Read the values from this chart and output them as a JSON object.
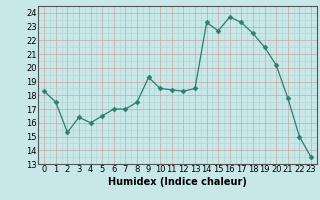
{
  "x": [
    0,
    1,
    2,
    3,
    4,
    5,
    6,
    7,
    8,
    9,
    10,
    11,
    12,
    13,
    14,
    15,
    16,
    17,
    18,
    19,
    20,
    21,
    22,
    23
  ],
  "y": [
    18.3,
    17.5,
    15.3,
    16.4,
    16.0,
    16.5,
    17.0,
    17.0,
    17.5,
    19.3,
    18.5,
    18.4,
    18.3,
    18.5,
    23.3,
    22.7,
    23.7,
    23.3,
    22.5,
    21.5,
    20.2,
    17.8,
    15.0,
    13.5
  ],
  "line_color": "#2e7d6e",
  "marker": "D",
  "marker_size": 2.5,
  "bg_color": "#c8e8e8",
  "grid_major_color": "#c4a8a8",
  "grid_minor_color": "#b0d4d4",
  "xlabel": "Humidex (Indice chaleur)",
  "xlim": [
    -0.5,
    23.5
  ],
  "ylim": [
    13,
    24.5
  ],
  "yticks": [
    13,
    14,
    15,
    16,
    17,
    18,
    19,
    20,
    21,
    22,
    23,
    24
  ],
  "xticks": [
    0,
    1,
    2,
    3,
    4,
    5,
    6,
    7,
    8,
    9,
    10,
    11,
    12,
    13,
    14,
    15,
    16,
    17,
    18,
    19,
    20,
    21,
    22,
    23
  ],
  "xlabel_fontsize": 7,
  "tick_fontsize": 6
}
